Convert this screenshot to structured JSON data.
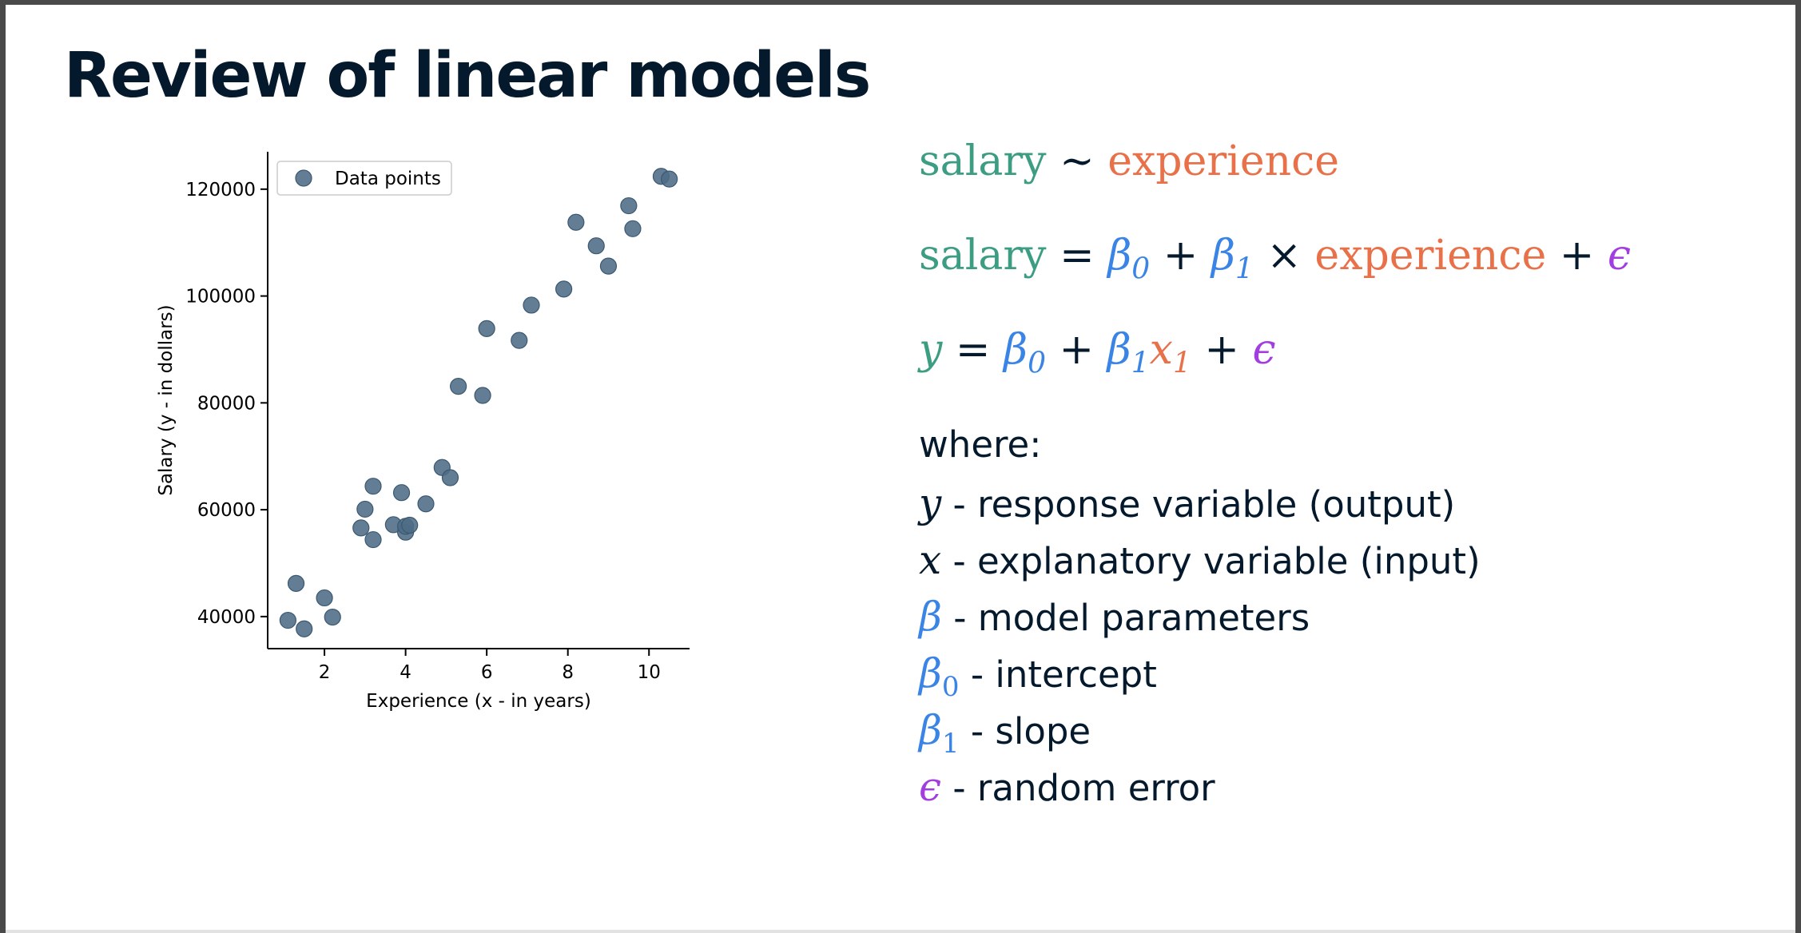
{
  "slide": {
    "title": "Review of linear models"
  },
  "colors": {
    "response": "#3c9d82",
    "explanatory": "#e8714a",
    "parameter": "#3a84e6",
    "error": "#a23ee0",
    "text": "#05192d",
    "points": "#4d6c85"
  },
  "equations": {
    "eq1": {
      "lhs": "salary",
      "tilde": "∼",
      "rhs": "experience"
    },
    "eq2": {
      "lhs": "salary",
      "eq": "=",
      "b": "β",
      "sub0": "0",
      "plus": "+",
      "sub1": "1",
      "times": "×",
      "x": "experience",
      "eps": "ϵ"
    },
    "eq3": {
      "y": "y",
      "eq": "=",
      "b": "β",
      "sub0": "0",
      "plus": "+",
      "sub1": "1",
      "x": "x",
      "eps": "ϵ"
    }
  },
  "definitions": {
    "heading": "where:",
    "items": [
      {
        "symbol": "y",
        "sub": "",
        "text": " - response variable (output)"
      },
      {
        "symbol": "x",
        "sub": "",
        "text": " - explanatory variable (input)"
      },
      {
        "symbol": "β",
        "sub": "",
        "text": " - model parameters"
      },
      {
        "symbol": "β",
        "sub": "0",
        "text": " - intercept"
      },
      {
        "symbol": "β",
        "sub": "1",
        "text": " - slope"
      },
      {
        "symbol": "ϵ",
        "sub": "",
        "text": " - random error"
      }
    ]
  },
  "chart_data": {
    "type": "scatter",
    "xlabel": "Experience (x - in years)",
    "ylabel": "Salary (y - in dollars)",
    "xlim": [
      0.6,
      11
    ],
    "ylim": [
      34000,
      127000
    ],
    "xticks": [
      2,
      4,
      6,
      8,
      10
    ],
    "xtick_labels": [
      "2",
      "4",
      "6",
      "8",
      "10"
    ],
    "yticks": [
      40000,
      60000,
      80000,
      100000,
      120000
    ],
    "ytick_labels": [
      "40000",
      "60000",
      "80000",
      "100000",
      "120000"
    ],
    "grid": false,
    "legend": {
      "position": "top-left",
      "label": "Data points"
    },
    "series": [
      {
        "name": "Data points",
        "color": "#4d6c85",
        "points": [
          [
            1.1,
            39300
          ],
          [
            1.3,
            46200
          ],
          [
            1.5,
            37700
          ],
          [
            2.0,
            43500
          ],
          [
            2.2,
            39900
          ],
          [
            2.9,
            56600
          ],
          [
            3.0,
            60100
          ],
          [
            3.2,
            54400
          ],
          [
            3.2,
            64400
          ],
          [
            3.7,
            57200
          ],
          [
            3.9,
            63200
          ],
          [
            4.0,
            55800
          ],
          [
            4.0,
            56900
          ],
          [
            4.1,
            57100
          ],
          [
            4.5,
            61100
          ],
          [
            4.9,
            67900
          ],
          [
            5.1,
            66000
          ],
          [
            5.3,
            83100
          ],
          [
            5.9,
            81400
          ],
          [
            6.0,
            93900
          ],
          [
            6.8,
            91700
          ],
          [
            7.1,
            98300
          ],
          [
            7.9,
            101300
          ],
          [
            8.2,
            113800
          ],
          [
            8.7,
            109400
          ],
          [
            9.0,
            105600
          ],
          [
            9.5,
            116900
          ],
          [
            9.6,
            112600
          ],
          [
            10.3,
            122400
          ],
          [
            10.5,
            121900
          ]
        ]
      }
    ]
  }
}
